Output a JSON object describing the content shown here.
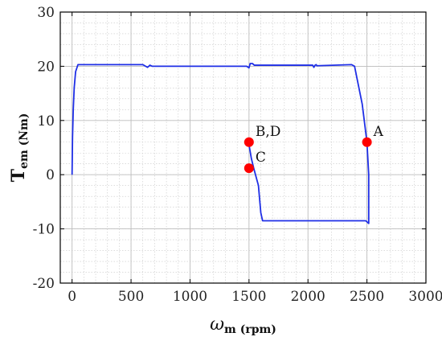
{
  "chart_data": {
    "type": "line",
    "title": "",
    "xlabel": {
      "main": "ω",
      "sub": "m (rpm)"
    },
    "ylabel": {
      "main": "T",
      "sub": "em (Nm)"
    },
    "xlim": [
      -100,
      3000
    ],
    "ylim": [
      -20,
      30
    ],
    "xticks": [
      0,
      500,
      1000,
      1500,
      2000,
      2500,
      3000
    ],
    "yticks": [
      -20,
      -10,
      0,
      10,
      20,
      30
    ],
    "x_minor_step": 100,
    "y_minor_step": 2,
    "grid": true,
    "line_color": "#1f2fe6",
    "marker_color": "#ff0000",
    "series": [
      {
        "x": [
          0,
          4,
          10,
          18,
          30,
          50,
          600,
          640,
          660,
          680,
          1480,
          1500,
          1510,
          1530,
          1545,
          2040,
          2050,
          2060,
          2070,
          2075,
          2370,
          2395,
          2460,
          2500,
          2515,
          2515,
          2490,
          1615,
          1600,
          1580,
          1540,
          1520,
          1500,
          1490,
          1490,
          1495,
          1500
        ],
        "y": [
          0,
          7,
          12,
          16,
          19,
          20.3,
          20.3,
          19.8,
          20.2,
          20.0,
          20.0,
          19.7,
          20.5,
          20.5,
          20.2,
          20.2,
          19.8,
          20.2,
          20.3,
          20.1,
          20.3,
          20.0,
          13,
          6.0,
          0,
          -9,
          -8.5,
          -8.5,
          -7,
          -2,
          1.2,
          3.0,
          5.5,
          6.0,
          6.0,
          5.8,
          6.0
        ]
      }
    ],
    "points": [
      {
        "label": "A",
        "x": 2500,
        "y": 6
      },
      {
        "label": "B,D",
        "x": 1500,
        "y": 6
      },
      {
        "label": "C",
        "x": 1500,
        "y": 1.2
      }
    ]
  }
}
